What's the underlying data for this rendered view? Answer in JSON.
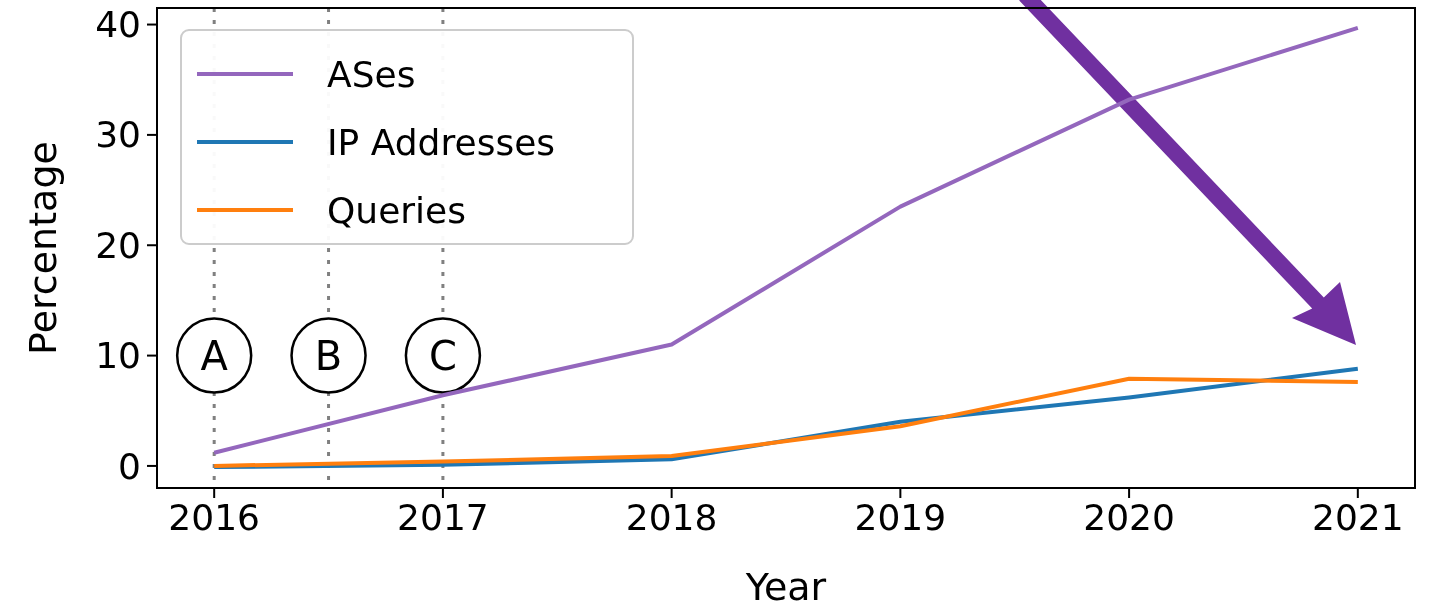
{
  "chart_data": {
    "type": "line",
    "xlabel": "Year",
    "ylabel": "Percentage",
    "x": [
      2016,
      2017,
      2018,
      2019,
      2020,
      2021
    ],
    "series": [
      {
        "name": "ASes",
        "color": "#9467bd",
        "values": [
          1.2,
          6.4,
          11.0,
          23.5,
          33.2,
          39.7
        ]
      },
      {
        "name": "IP Addresses",
        "color": "#1f77b4",
        "values": [
          -0.1,
          0.1,
          0.6,
          4.0,
          6.2,
          8.8
        ]
      },
      {
        "name": "Queries",
        "color": "#ff7f0e",
        "values": [
          0.0,
          0.4,
          0.9,
          3.6,
          7.9,
          7.6
        ]
      }
    ],
    "xlim": [
      2015.75,
      2021.25
    ],
    "xticks": [
      2016,
      2017,
      2018,
      2019,
      2020,
      2021
    ],
    "ylim": [
      -2,
      41.5
    ],
    "yticks": [
      0,
      10,
      20,
      30,
      40
    ],
    "ref_lines": [
      {
        "axis": "x",
        "value": 2016,
        "label": "A",
        "color": "#808080",
        "line_style": "dotted"
      },
      {
        "axis": "x",
        "value": 2016.5,
        "label": "B",
        "color": "#808080",
        "line_style": "dotted"
      },
      {
        "axis": "x",
        "value": 2017,
        "label": "C",
        "color": "#808080",
        "line_style": "dotted"
      }
    ],
    "legend": "top left",
    "grid": false,
    "marker": "none",
    "line_style": "solid"
  }
}
